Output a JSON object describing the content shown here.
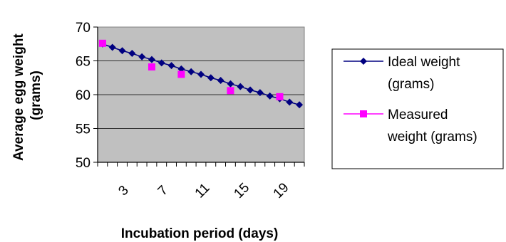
{
  "chart_data": {
    "type": "line",
    "xlabel": "Incubation period (days)",
    "ylabel": "Average egg weight (grams)",
    "ylim": [
      50,
      70
    ],
    "yticks": [
      50,
      55,
      60,
      65,
      70
    ],
    "x": [
      1,
      2,
      3,
      4,
      5,
      6,
      7,
      8,
      9,
      10,
      11,
      12,
      13,
      14,
      15,
      16,
      17,
      18,
      19,
      20,
      21
    ],
    "xtick_labels": [
      "3",
      "7",
      "11",
      "15",
      "19"
    ],
    "xtick_values": [
      3,
      7,
      11,
      15,
      19
    ],
    "grid": "horizontal",
    "legend": "right",
    "plot_background": "#c0c0c0",
    "series": [
      {
        "name": "Ideal weight (grams)",
        "color": "#000080",
        "marker": "diamond",
        "x": [
          1,
          2,
          3,
          4,
          5,
          6,
          7,
          8,
          9,
          10,
          11,
          12,
          13,
          14,
          15,
          16,
          17,
          18,
          19,
          20,
          21
        ],
        "values": [
          67.5,
          67.0,
          66.5,
          66.1,
          65.6,
          65.2,
          64.7,
          64.3,
          63.8,
          63.4,
          63.0,
          62.5,
          62.1,
          61.6,
          61.2,
          60.7,
          60.3,
          59.8,
          59.4,
          58.9,
          58.5
        ]
      },
      {
        "name": "Measured weight (grams)",
        "color": "#ff00ff",
        "marker": "square",
        "x": [
          1,
          6,
          9,
          14,
          19
        ],
        "values": [
          67.6,
          64.1,
          63.0,
          60.6,
          59.7
        ]
      }
    ],
    "legend_lines": [
      [
        "Ideal weight",
        "(grams)"
      ],
      [
        "Measured",
        "weight (grams)"
      ]
    ]
  }
}
